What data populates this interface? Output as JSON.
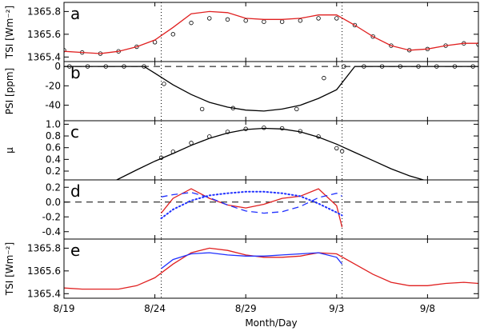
{
  "chart_data": {
    "x_axis": {
      "label": "Month/Day",
      "ticks": [
        {
          "x": 0,
          "label": "8/19"
        },
        {
          "x": 5,
          "label": "8/24"
        },
        {
          "x": 10,
          "label": "8/29"
        },
        {
          "x": 15,
          "label": "9/3"
        },
        {
          "x": 20,
          "label": "9/8"
        }
      ],
      "range": [
        0,
        22.8
      ],
      "vertical_markers": [
        5.35,
        15.3
      ]
    },
    "panels": [
      {
        "letter": "a",
        "type": "scatter+line",
        "ylabel": "TSI [Wm⁻²]",
        "ylim": [
          1365.36,
          1365.88
        ],
        "ticks": [
          {
            "v": 1365.4,
            "label": "1365.4"
          },
          {
            "v": 1365.6,
            "label": "1365.6"
          },
          {
            "v": 1365.8,
            "label": "1365.8"
          }
        ],
        "series": [
          {
            "name": "observed",
            "style": "open-circles",
            "color": "#000000",
            "x": [
              0,
              1,
              2,
              3,
              4,
              5,
              6,
              7,
              8,
              9,
              10,
              11,
              12,
              13,
              14,
              15,
              16,
              17,
              18,
              19,
              20,
              21,
              22,
              22.8
            ],
            "y": [
              1365.46,
              1365.44,
              1365.43,
              1365.45,
              1365.49,
              1365.53,
              1365.6,
              1365.7,
              1365.74,
              1365.73,
              1365.72,
              1365.71,
              1365.71,
              1365.72,
              1365.74,
              1365.74,
              1365.68,
              1365.58,
              1365.5,
              1365.46,
              1365.47,
              1365.5,
              1365.52,
              1365.51
            ]
          },
          {
            "name": "model",
            "style": "solid",
            "color": "#e02020",
            "x": [
              0,
              1,
              2,
              3,
              4,
              5,
              6,
              7,
              8,
              9,
              10,
              11,
              12,
              13,
              14,
              15,
              16,
              17,
              18,
              19,
              20,
              21,
              22,
              22.8
            ],
            "y": [
              1365.45,
              1365.44,
              1365.43,
              1365.45,
              1365.49,
              1365.55,
              1365.66,
              1365.78,
              1365.8,
              1365.79,
              1365.74,
              1365.73,
              1365.73,
              1365.74,
              1365.77,
              1365.77,
              1365.68,
              1365.58,
              1365.5,
              1365.46,
              1365.47,
              1365.5,
              1365.52,
              1365.52
            ]
          }
        ]
      },
      {
        "letter": "b",
        "type": "scatter+line",
        "ylabel": "PSI [ppm]",
        "ylim": [
          -56,
          5
        ],
        "ticks": [
          {
            "v": 0,
            "label": "0"
          },
          {
            "v": -20,
            "label": "-20"
          },
          {
            "v": -40,
            "label": "-40"
          }
        ],
        "zero_line": true,
        "series": [
          {
            "name": "observed",
            "style": "open-circles",
            "color": "#000000",
            "x": [
              0.3,
              1.3,
              2.3,
              3.3,
              4.4,
              5.5,
              7.6,
              9.3,
              12.8,
              14.3,
              15.4,
              16.5,
              17.5,
              18.5,
              19.5,
              20.5,
              21.5,
              22.5
            ],
            "y": [
              0,
              0,
              0,
              0,
              0,
              -18,
              -44,
              -43,
              -44,
              -12,
              0,
              0,
              0,
              0,
              0,
              0,
              0,
              0
            ]
          },
          {
            "name": "fit",
            "style": "solid",
            "color": "#000000",
            "x": [
              0,
              1,
              2,
              3,
              4,
              4.4,
              5,
              6,
              7,
              8,
              9,
              10,
              11,
              12,
              13,
              14,
              15,
              16,
              17,
              18,
              19,
              20,
              21,
              22,
              22.8
            ],
            "y": [
              0,
              0,
              0,
              0,
              0,
              0,
              -7,
              -19,
              -29,
              -37,
              -42,
              -45,
              -46,
              -44,
              -40,
              -33,
              -24,
              0,
              0,
              0,
              0,
              0,
              0,
              0,
              0
            ]
          }
        ]
      },
      {
        "letter": "c",
        "type": "scatter+line",
        "ylabel": "μ",
        "ylim": [
          0.05,
          1.06
        ],
        "ticks": [
          {
            "v": 0.2,
            "label": "0.2"
          },
          {
            "v": 0.4,
            "label": "0.4"
          },
          {
            "v": 0.6,
            "label": "0.6"
          },
          {
            "v": 0.8,
            "label": "0.8"
          },
          {
            "v": 1.0,
            "label": "1.0"
          }
        ],
        "series": [
          {
            "name": "observed",
            "style": "open-circles",
            "color": "#000000",
            "x": [
              5.35,
              6,
              7,
              8,
              9,
              10,
              11,
              12,
              13,
              14,
              15,
              15.3
            ],
            "y": [
              0.43,
              0.53,
              0.68,
              0.79,
              0.87,
              0.92,
              0.94,
              0.93,
              0.88,
              0.79,
              0.59,
              0.54
            ]
          },
          {
            "name": "model",
            "style": "solid",
            "color": "#000000",
            "x": [
              2.9,
              4,
              5,
              6,
              7,
              8,
              9,
              10,
              11,
              12,
              13,
              14,
              15,
              16,
              17,
              18,
              19,
              20,
              20.8
            ],
            "y": [
              0.05,
              0.22,
              0.37,
              0.5,
              0.64,
              0.76,
              0.85,
              0.91,
              0.93,
              0.92,
              0.87,
              0.78,
              0.66,
              0.52,
              0.38,
              0.24,
              0.12,
              0.03,
              0.0
            ]
          }
        ]
      },
      {
        "letter": "d",
        "type": "line",
        "ylabel": "",
        "ylim": [
          -0.5,
          0.3
        ],
        "ticks": [
          {
            "v": 0.2,
            "label": "0.2"
          },
          {
            "v": 0.0,
            "label": "0.0"
          },
          {
            "v": -0.2,
            "label": "-0.2"
          },
          {
            "v": -0.4,
            "label": "-0.4"
          }
        ],
        "zero_line": true,
        "series": [
          {
            "name": "red-solid",
            "style": "solid",
            "color": "#e02020",
            "x": [
              5.35,
              6,
              7,
              8,
              9,
              10,
              11,
              12,
              13,
              14,
              15,
              15.3
            ],
            "y": [
              -0.15,
              0.05,
              0.18,
              0.05,
              -0.04,
              -0.08,
              -0.03,
              0.05,
              0.08,
              0.18,
              -0.05,
              -0.34
            ]
          },
          {
            "name": "blue-dashed",
            "style": "dashed",
            "color": "#2030ff",
            "x": [
              5.35,
              6,
              7,
              8,
              9,
              10,
              11,
              12,
              13,
              14,
              15,
              15.3
            ],
            "y": [
              0.07,
              0.1,
              0.13,
              0.06,
              -0.04,
              -0.12,
              -0.15,
              -0.13,
              -0.06,
              0.06,
              0.12,
              0.08
            ]
          },
          {
            "name": "blue-dotted",
            "style": "dotted",
            "color": "#2030ff",
            "x": [
              5.35,
              6,
              7,
              8,
              9,
              10,
              11,
              12,
              13,
              14,
              15,
              15.3
            ],
            "y": [
              -0.22,
              -0.1,
              0.02,
              0.09,
              0.12,
              0.14,
              0.14,
              0.12,
              0.08,
              -0.02,
              -0.14,
              -0.18
            ]
          }
        ]
      },
      {
        "letter": "e",
        "type": "line",
        "ylabel": "TSI [Wm⁻²]",
        "ylim": [
          1365.36,
          1365.88
        ],
        "ticks": [
          {
            "v": 1365.4,
            "label": "1365.4"
          },
          {
            "v": 1365.6,
            "label": "1365.6"
          },
          {
            "v": 1365.8,
            "label": "1365.8"
          }
        ],
        "series": [
          {
            "name": "red-solid",
            "style": "solid",
            "color": "#e02020",
            "x": [
              0,
              1,
              2,
              3,
              4,
              5,
              6,
              7,
              8,
              9,
              10,
              11,
              12,
              13,
              14,
              15,
              16,
              17,
              18,
              19,
              20,
              21,
              22,
              22.8
            ],
            "y": [
              1365.45,
              1365.44,
              1365.44,
              1365.44,
              1365.47,
              1365.54,
              1365.66,
              1365.76,
              1365.8,
              1365.78,
              1365.74,
              1365.72,
              1365.72,
              1365.73,
              1365.76,
              1365.75,
              1365.66,
              1365.57,
              1365.5,
              1365.47,
              1365.47,
              1365.49,
              1365.5,
              1365.49
            ]
          },
          {
            "name": "blue-solid",
            "style": "solid",
            "color": "#2030ff",
            "x": [
              5.35,
              6,
              7,
              8,
              9,
              10,
              11,
              12,
              13,
              14,
              15,
              15.3
            ],
            "y": [
              1365.62,
              1365.7,
              1365.75,
              1365.76,
              1365.74,
              1365.73,
              1365.73,
              1365.74,
              1365.75,
              1365.76,
              1365.72,
              1365.66
            ]
          }
        ]
      }
    ]
  }
}
